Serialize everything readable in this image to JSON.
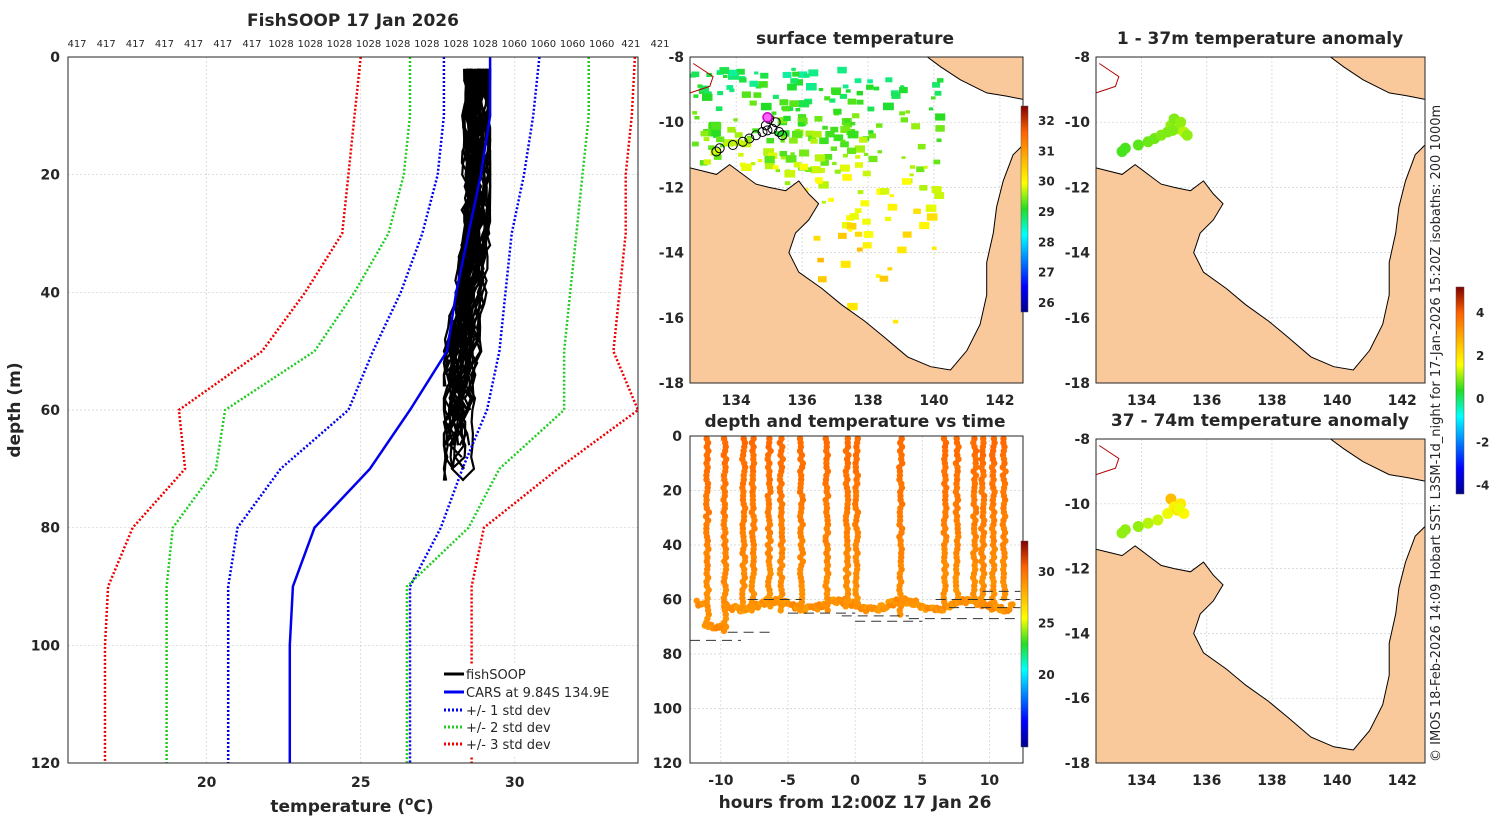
{
  "chart_data": [
    {
      "type": "line",
      "title": "FishSOOP 17 Jan 2026",
      "xlabel": "temperature (oC)",
      "xlabel_main": "temperature (",
      "xlabel_sup": "o",
      "xlabel_end": "C)",
      "ylabel": "depth (m)",
      "xlim": [
        15.5,
        34
      ],
      "ylim": [
        120,
        0
      ],
      "xticks": [
        20,
        25,
        30
      ],
      "yticks": [
        0,
        20,
        40,
        60,
        80,
        100,
        120
      ],
      "top_counts": [
        "417",
        "417",
        "417",
        "417",
        "417",
        "417",
        "417",
        "1028",
        "1028",
        "1028",
        "1028",
        "1028",
        "1028",
        "1028",
        "1028",
        "1060",
        "1060",
        "1060",
        "1060",
        "421",
        "421"
      ],
      "legend": [
        "fishSOOP",
        "CARS at 9.84S 134.9E",
        "+/- 1 std dev",
        "+/- 2 std dev",
        "+/- 3 std dev"
      ],
      "series": [
        {
          "name": "CARS mean",
          "color": "#0000ee",
          "style": "solid",
          "depth": [
            0,
            10,
            20,
            30,
            40,
            50,
            60,
            70,
            80,
            90,
            100,
            120
          ],
          "temp": [
            29.2,
            29.2,
            28.9,
            28.5,
            28.1,
            27.8,
            26.6,
            25.3,
            23.5,
            22.8,
            22.7,
            22.7
          ]
        },
        {
          "name": "+1 std",
          "color": "#0000ee",
          "style": "dotted",
          "depth": [
            0,
            10,
            20,
            30,
            40,
            50,
            60,
            70,
            80,
            90,
            100,
            120
          ],
          "temp": [
            30.8,
            30.6,
            30.3,
            29.9,
            29.7,
            29.5,
            29.1,
            28.3,
            27.6,
            26.6,
            26.6,
            26.6
          ]
        },
        {
          "name": "-1 std",
          "color": "#0000ee",
          "style": "dotted",
          "depth": [
            0,
            10,
            20,
            30,
            40,
            50,
            60,
            70,
            80,
            90,
            100,
            120
          ],
          "temp": [
            27.7,
            27.7,
            27.5,
            27.0,
            26.3,
            25.4,
            24.6,
            22.4,
            21.0,
            20.7,
            20.7,
            20.7
          ]
        },
        {
          "name": "+2 std",
          "color": "#22cc22",
          "style": "dotted",
          "depth": [
            0,
            10,
            20,
            30,
            40,
            50,
            60,
            70,
            80,
            90,
            100,
            120
          ],
          "temp": [
            32.4,
            32.4,
            32.2,
            32.0,
            31.8,
            31.6,
            31.6,
            29.5,
            28.5,
            26.5,
            26.5,
            26.5
          ]
        },
        {
          "name": "-2 std",
          "color": "#22cc22",
          "style": "dotted",
          "depth": [
            0,
            10,
            20,
            30,
            40,
            50,
            60,
            70,
            80,
            90,
            100,
            120
          ],
          "temp": [
            26.6,
            26.6,
            26.4,
            25.9,
            24.8,
            23.5,
            20.6,
            20.3,
            18.9,
            18.7,
            18.7,
            18.7
          ]
        },
        {
          "name": "+3 std",
          "color": "#ee0000",
          "style": "dotted",
          "depth": [
            0,
            10,
            20,
            30,
            40,
            50,
            60,
            70,
            80,
            90,
            100,
            120
          ],
          "temp": [
            33.9,
            33.8,
            33.6,
            33.6,
            33.4,
            33.2,
            34.0,
            31.4,
            29.0,
            28.6,
            28.6,
            28.6
          ]
        },
        {
          "name": "-3 std",
          "color": "#ee0000",
          "style": "dotted",
          "depth": [
            0,
            10,
            20,
            30,
            40,
            50,
            60,
            70,
            80,
            90,
            100,
            120
          ],
          "temp": [
            25.0,
            24.8,
            24.6,
            24.4,
            23.2,
            21.8,
            19.1,
            19.3,
            17.6,
            16.8,
            16.7,
            16.7
          ]
        }
      ],
      "fishsoop": {
        "color": "#000000",
        "temp_range": [
          27.7,
          29.2
        ],
        "depth_range": [
          2,
          74
        ],
        "n_profiles": 40
      }
    },
    {
      "type": "heatmap",
      "title": "surface temperature",
      "xticks": [
        134,
        136,
        138,
        140,
        142
      ],
      "yticks": [
        -8,
        -10,
        -12,
        -14,
        -16,
        -18
      ],
      "xlim": [
        132.6,
        142.7
      ],
      "ylim": [
        -18,
        -8
      ],
      "colorbar": {
        "min": 25.7,
        "max": 32.5,
        "ticks": [
          26,
          27,
          28,
          29,
          30,
          31,
          32
        ]
      }
    },
    {
      "type": "scatter",
      "title": "1 - 37m temperature anomaly",
      "xticks": [
        134,
        136,
        138,
        140,
        142
      ],
      "yticks": [
        -8,
        -10,
        -12,
        -14,
        -16,
        -18
      ],
      "xlim": [
        132.6,
        142.7
      ],
      "ylim": [
        -18,
        -8
      ],
      "points": [
        [
          133.4,
          -10.9
        ],
        [
          133.5,
          -10.8
        ],
        [
          133.9,
          -10.7
        ],
        [
          134.2,
          -10.6
        ],
        [
          134.4,
          -10.5
        ],
        [
          134.6,
          -10.4
        ],
        [
          134.8,
          -10.3
        ],
        [
          134.9,
          -10.1
        ],
        [
          135.0,
          -9.9
        ],
        [
          135.1,
          -10.2
        ],
        [
          135.2,
          -10.0
        ],
        [
          135.3,
          -10.3
        ],
        [
          135.4,
          -10.4
        ],
        [
          134.95,
          -10.25
        ]
      ],
      "values": [
        0.6,
        0.6,
        0.7,
        0.8,
        0.8,
        0.9,
        0.9,
        1.0,
        0.9,
        1.1,
        1.0,
        1.2,
        1.0,
        0.9
      ]
    },
    {
      "type": "scatter",
      "title": "37 - 74m temperature anomaly",
      "xticks": [
        134,
        136,
        138,
        140,
        142
      ],
      "yticks": [
        -8,
        -10,
        -12,
        -14,
        -16,
        -18
      ],
      "xlim": [
        132.6,
        142.7
      ],
      "ylim": [
        -18,
        -8
      ],
      "points": [
        [
          133.4,
          -10.9
        ],
        [
          133.5,
          -10.8
        ],
        [
          133.9,
          -10.7
        ],
        [
          134.2,
          -10.6
        ],
        [
          134.5,
          -10.5
        ],
        [
          134.8,
          -10.3
        ],
        [
          134.9,
          -9.85
        ],
        [
          135.0,
          -10.1
        ],
        [
          135.1,
          -10.2
        ],
        [
          135.2,
          -10.0
        ],
        [
          135.3,
          -10.3
        ],
        [
          135.15,
          -10.15
        ]
      ],
      "values": [
        1.0,
        1.0,
        1.0,
        1.2,
        1.3,
        1.5,
        2.6,
        1.8,
        2.0,
        1.9,
        1.7,
        1.5
      ],
      "colorbar": {
        "min": -4.4,
        "max": 5.2,
        "ticks": [
          4,
          2,
          0,
          -2,
          -4
        ]
      }
    },
    {
      "type": "scatter",
      "title": "depth and temperature vs time",
      "xlabel": "hours from 12:00Z 17 Jan 26",
      "xticks": [
        -10,
        -5,
        0,
        5,
        10
      ],
      "yticks": [
        0,
        20,
        40,
        60,
        80,
        100,
        120
      ],
      "xlim": [
        -12.3,
        12.5
      ],
      "ylim": [
        120,
        0
      ],
      "cast_times": [
        -11.0,
        -9.7,
        -8.3,
        -7.6,
        -6.4,
        -5.5,
        -4.0,
        -2.1,
        -0.6,
        0.1,
        3.4,
        6.7,
        7.6,
        8.9,
        9.5,
        10.3,
        11.1
      ],
      "bottom_depths": [
        71,
        72,
        65,
        65,
        63,
        64,
        65,
        64,
        63,
        63,
        66,
        62,
        60,
        61,
        62,
        61,
        60
      ],
      "colorbar": {
        "min": 13,
        "max": 33,
        "ticks": [
          30,
          25,
          20
        ]
      }
    }
  ],
  "credit": "© IMOS 18-Feb-2026 14:09 Hobart SST: L3SM-1d_night for 17-Jan-2026 15:20Z isobaths: 200  1000m"
}
